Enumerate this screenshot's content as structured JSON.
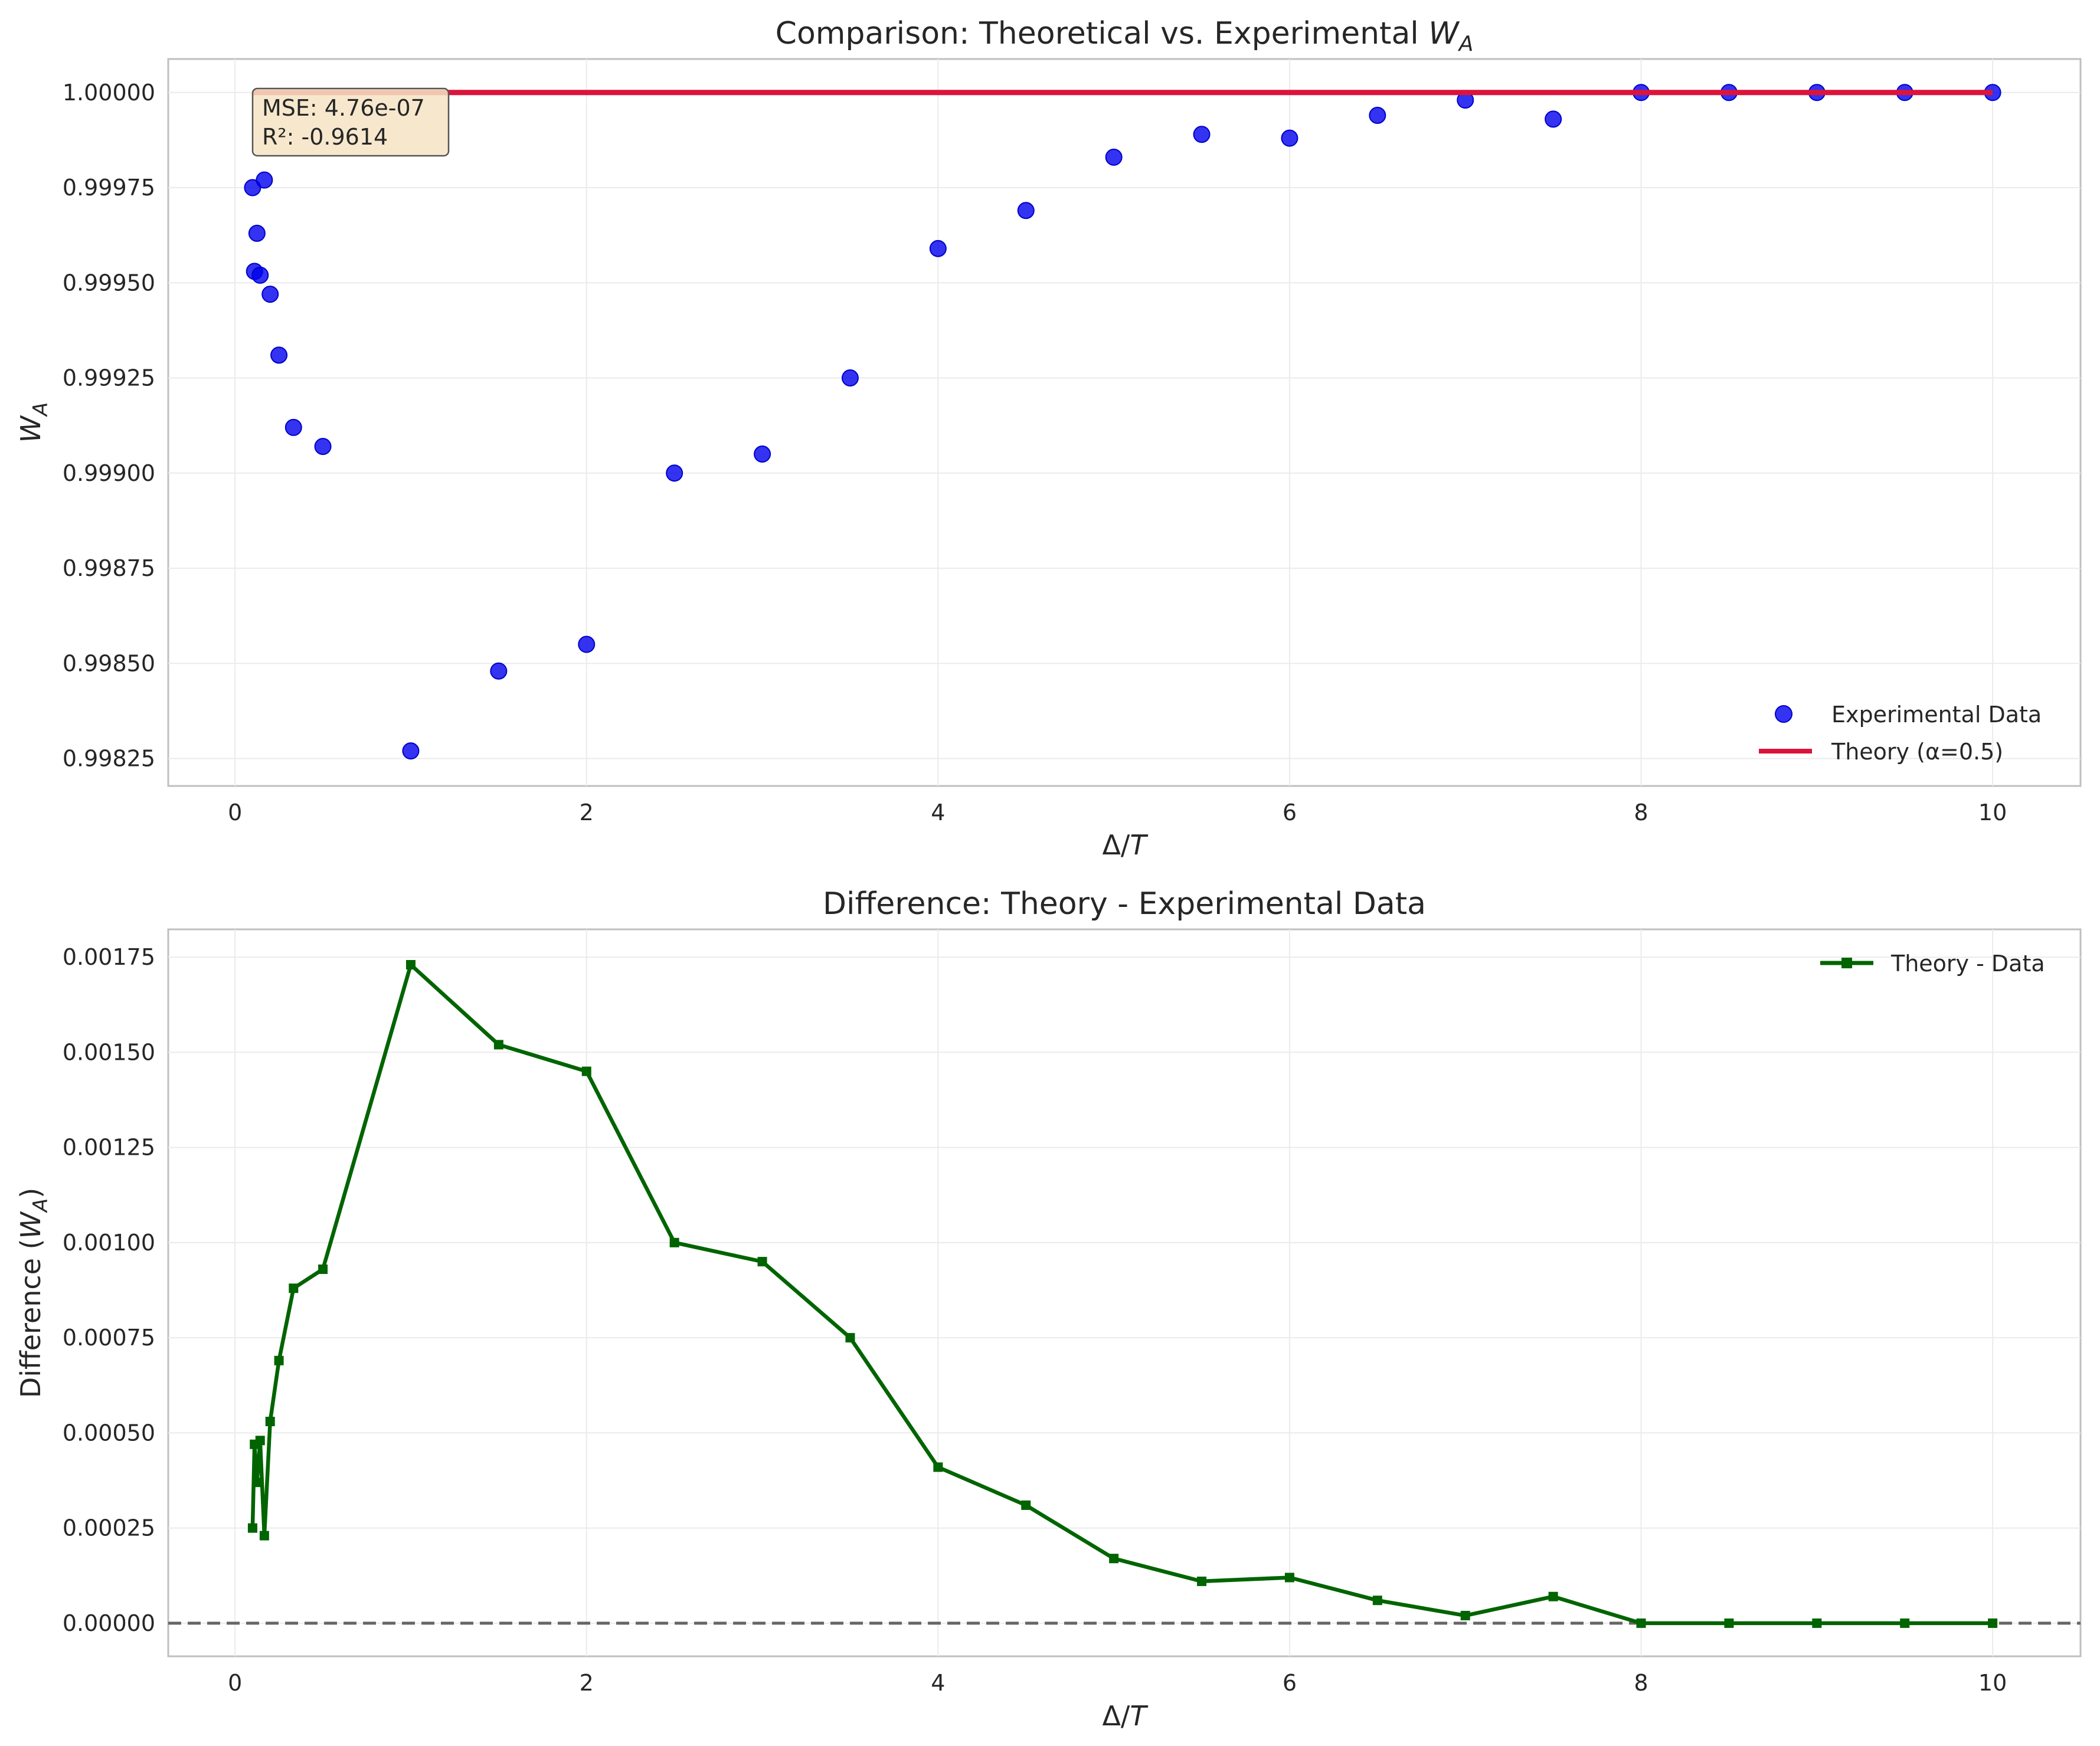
{
  "chart_data": [
    {
      "type": "scatter",
      "title": "Comparison: Theoretical vs. Experimental W_A",
      "title_prefix": "Comparison: Theoretical vs. Experimental ",
      "title_var": "W",
      "title_sub": "A",
      "xlabel": "Δ/T",
      "xlabel_main": "Δ/",
      "xlabel_var": "T",
      "ylabel": "W_A",
      "ylabel_var": "W",
      "ylabel_sub": "A",
      "xlim": [
        -0.38,
        10.5
      ],
      "ylim": [
        0.998178,
        1.000088
      ],
      "x_ticks": [
        0,
        2,
        4,
        6,
        8,
        10
      ],
      "y_ticks": [
        0.99825,
        0.9985,
        0.99875,
        0.999,
        0.99925,
        0.9995,
        0.99975,
        1.0
      ],
      "y_tick_labels": [
        "0.99825",
        "0.99850",
        "0.99875",
        "0.99900",
        "0.99925",
        "0.99950",
        "0.99975",
        "1.00000"
      ],
      "grid": true,
      "legend_position": "bottom-right",
      "series": [
        {
          "name": "Experimental Data",
          "kind": "scatter",
          "color": "#0000ee",
          "x": [
            0.1,
            0.111,
            0.125,
            0.143,
            0.167,
            0.2,
            0.25,
            0.333,
            0.5,
            1.0,
            1.5,
            2.0,
            2.5,
            3.0,
            3.5,
            4.0,
            4.5,
            5.0,
            5.5,
            6.0,
            6.5,
            7.0,
            7.5,
            8.0,
            8.5,
            9.0,
            9.5,
            10.0
          ],
          "y": [
            0.99975,
            0.99953,
            0.99963,
            0.99952,
            0.99977,
            0.99947,
            0.99931,
            0.99912,
            0.99907,
            0.99827,
            0.99848,
            0.99855,
            0.999,
            0.99905,
            0.99925,
            0.99959,
            0.99969,
            0.99983,
            0.99989,
            0.99988,
            0.99994,
            0.99998,
            0.99993,
            1.0,
            1.0,
            1.0,
            1.0,
            1.0
          ]
        },
        {
          "name": "Theory (α=0.5)",
          "kind": "line",
          "color": "#dc143c",
          "x": [
            0.1,
            10.0
          ],
          "y": [
            1.0,
            1.0
          ]
        }
      ],
      "annotation": {
        "lines": [
          "MSE: 4.76e-07",
          "R²: -0.9614"
        ],
        "position": "top-left"
      }
    },
    {
      "type": "line",
      "title": "Difference: Theory - Experimental Data",
      "xlabel": "Δ/T",
      "xlabel_main": "Δ/",
      "xlabel_var": "T",
      "ylabel": "Difference (W_A)",
      "ylabel_prefix": "Difference (",
      "ylabel_var": "W",
      "ylabel_sub": "A",
      "ylabel_suffix": ")",
      "xlim": [
        -0.38,
        10.5
      ],
      "ylim": [
        -8.7e-05,
        0.001823
      ],
      "x_ticks": [
        0,
        2,
        4,
        6,
        8,
        10
      ],
      "y_ticks": [
        0.0,
        0.00025,
        0.0005,
        0.00075,
        0.001,
        0.00125,
        0.0015,
        0.00175
      ],
      "y_tick_labels": [
        "0.00000",
        "0.00025",
        "0.00050",
        "0.00075",
        "0.00100",
        "0.00125",
        "0.00150",
        "0.00175"
      ],
      "grid": true,
      "legend_position": "top-right",
      "reference_line": {
        "y": 0,
        "style": "dashed",
        "color": "#666666"
      },
      "series": [
        {
          "name": "Theory - Data",
          "kind": "line-marker",
          "color": "#006400",
          "x": [
            0.1,
            0.111,
            0.125,
            0.143,
            0.167,
            0.2,
            0.25,
            0.333,
            0.5,
            1.0,
            1.5,
            2.0,
            2.5,
            3.0,
            3.5,
            4.0,
            4.5,
            5.0,
            5.5,
            6.0,
            6.5,
            7.0,
            7.5,
            8.0,
            8.5,
            9.0,
            9.5,
            10.0
          ],
          "y": [
            0.00025,
            0.00047,
            0.00037,
            0.00048,
            0.00023,
            0.00053,
            0.00069,
            0.00088,
            0.00093,
            0.00173,
            0.00152,
            0.00145,
            0.001,
            0.00095,
            0.00075,
            0.00041,
            0.00031,
            0.00017,
            0.00011,
            0.00012,
            6e-05,
            2e-05,
            7e-05,
            0.0,
            0.0,
            0.0,
            0.0,
            0.0
          ]
        }
      ]
    }
  ]
}
